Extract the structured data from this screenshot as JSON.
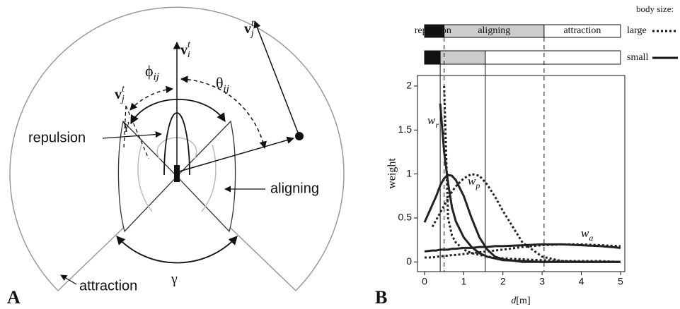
{
  "panel_a": {
    "letter": "A",
    "v_i": {
      "base": "v",
      "sub": "i",
      "sup": "t"
    },
    "v_j_right": {
      "base": "v",
      "sub": "j",
      "sup": "t"
    },
    "v_j_left": {
      "base": "v",
      "sub": "j",
      "sup": "t"
    },
    "phi": {
      "base": "ϕ",
      "sub": "ij"
    },
    "theta": {
      "base": "θ",
      "sub": "ij"
    },
    "gamma_top": "γ",
    "gamma_bottom": "γ",
    "repulsion": "repulsion",
    "aligning": "aligning",
    "attraction": "attraction"
  },
  "chart_data": {
    "type": "line",
    "letter": "B",
    "xlabel": {
      "italic": "d",
      "rest": "[m]"
    },
    "ylabel": "weight",
    "xlim": [
      -0.18,
      5.11
    ],
    "ylim": [
      -0.11,
      2.12
    ],
    "xticks": [
      0,
      1,
      2,
      3,
      4,
      5
    ],
    "yticks": [
      0,
      0.5,
      1,
      1.5,
      2
    ],
    "x": [
      0,
      0.2,
      0.3,
      0.4,
      0.5,
      0.6,
      0.7,
      0.8,
      1,
      1.2,
      1.4,
      1.6,
      1.8,
      2,
      2.5,
      3,
      3.5,
      4,
      4.5,
      5
    ],
    "series": [
      {
        "style": "solid",
        "color": "#222",
        "values": [
          null,
          null,
          null,
          1.8,
          1.25,
          0.9,
          0.62,
          0.46,
          0.28,
          0.17,
          0.1,
          0.06,
          0.04,
          0.02,
          0.01,
          0,
          0,
          0,
          0,
          0
        ]
      },
      {
        "style": "dotted",
        "color": "#222",
        "values": [
          null,
          null,
          null,
          null,
          2.0,
          0.5,
          0.3,
          0.22,
          0.14,
          0.1,
          0.08,
          0.06,
          0.05,
          0.04,
          0.03,
          0.02,
          0.01,
          0.01,
          0.01,
          0
        ]
      },
      {
        "style": "solid",
        "color": "#222",
        "values": [
          0.45,
          0.65,
          0.75,
          0.87,
          0.95,
          0.99,
          0.98,
          0.93,
          0.75,
          0.5,
          0.28,
          0.14,
          0.06,
          0.03,
          0,
          0,
          0,
          0,
          0,
          0
        ]
      },
      {
        "style": "dotted",
        "color": "#222",
        "values": [
          null,
          0.4,
          0.48,
          0.56,
          0.64,
          0.72,
          0.8,
          0.86,
          0.95,
          1.0,
          0.98,
          0.88,
          0.74,
          0.58,
          0.22,
          0.06,
          0.01,
          0,
          0,
          0
        ]
      },
      {
        "style": "solid",
        "color": "#222",
        "values": [
          0.12,
          0.13,
          0.13,
          0.14,
          0.14,
          0.14,
          0.15,
          0.15,
          0.16,
          0.16,
          0.17,
          0.17,
          0.18,
          0.18,
          0.19,
          0.2,
          0.2,
          0.19,
          0.18,
          0.16
        ]
      },
      {
        "style": "dotted",
        "color": "#222",
        "values": [
          0.05,
          0.05,
          0.06,
          0.06,
          0.07,
          0.07,
          0.08,
          0.08,
          0.09,
          0.1,
          0.11,
          0.12,
          0.13,
          0.14,
          0.17,
          0.19,
          0.2,
          0.2,
          0.19,
          0.18
        ]
      }
    ],
    "curve_labels": [
      {
        "base": "w",
        "sub": "r"
      },
      {
        "base": "w",
        "sub": "p"
      },
      {
        "base": "w",
        "sub": "a"
      }
    ],
    "legend_title": "body size:",
    "legend": [
      {
        "label": "large",
        "style": "dotted"
      },
      {
        "label": "small",
        "style": "solid"
      }
    ],
    "zone_names": [
      "repulsion",
      "aligning",
      "attraction"
    ],
    "zone_bounds": {
      "large": [
        0.5,
        3.05
      ],
      "small": [
        0.4,
        1.55
      ]
    }
  }
}
